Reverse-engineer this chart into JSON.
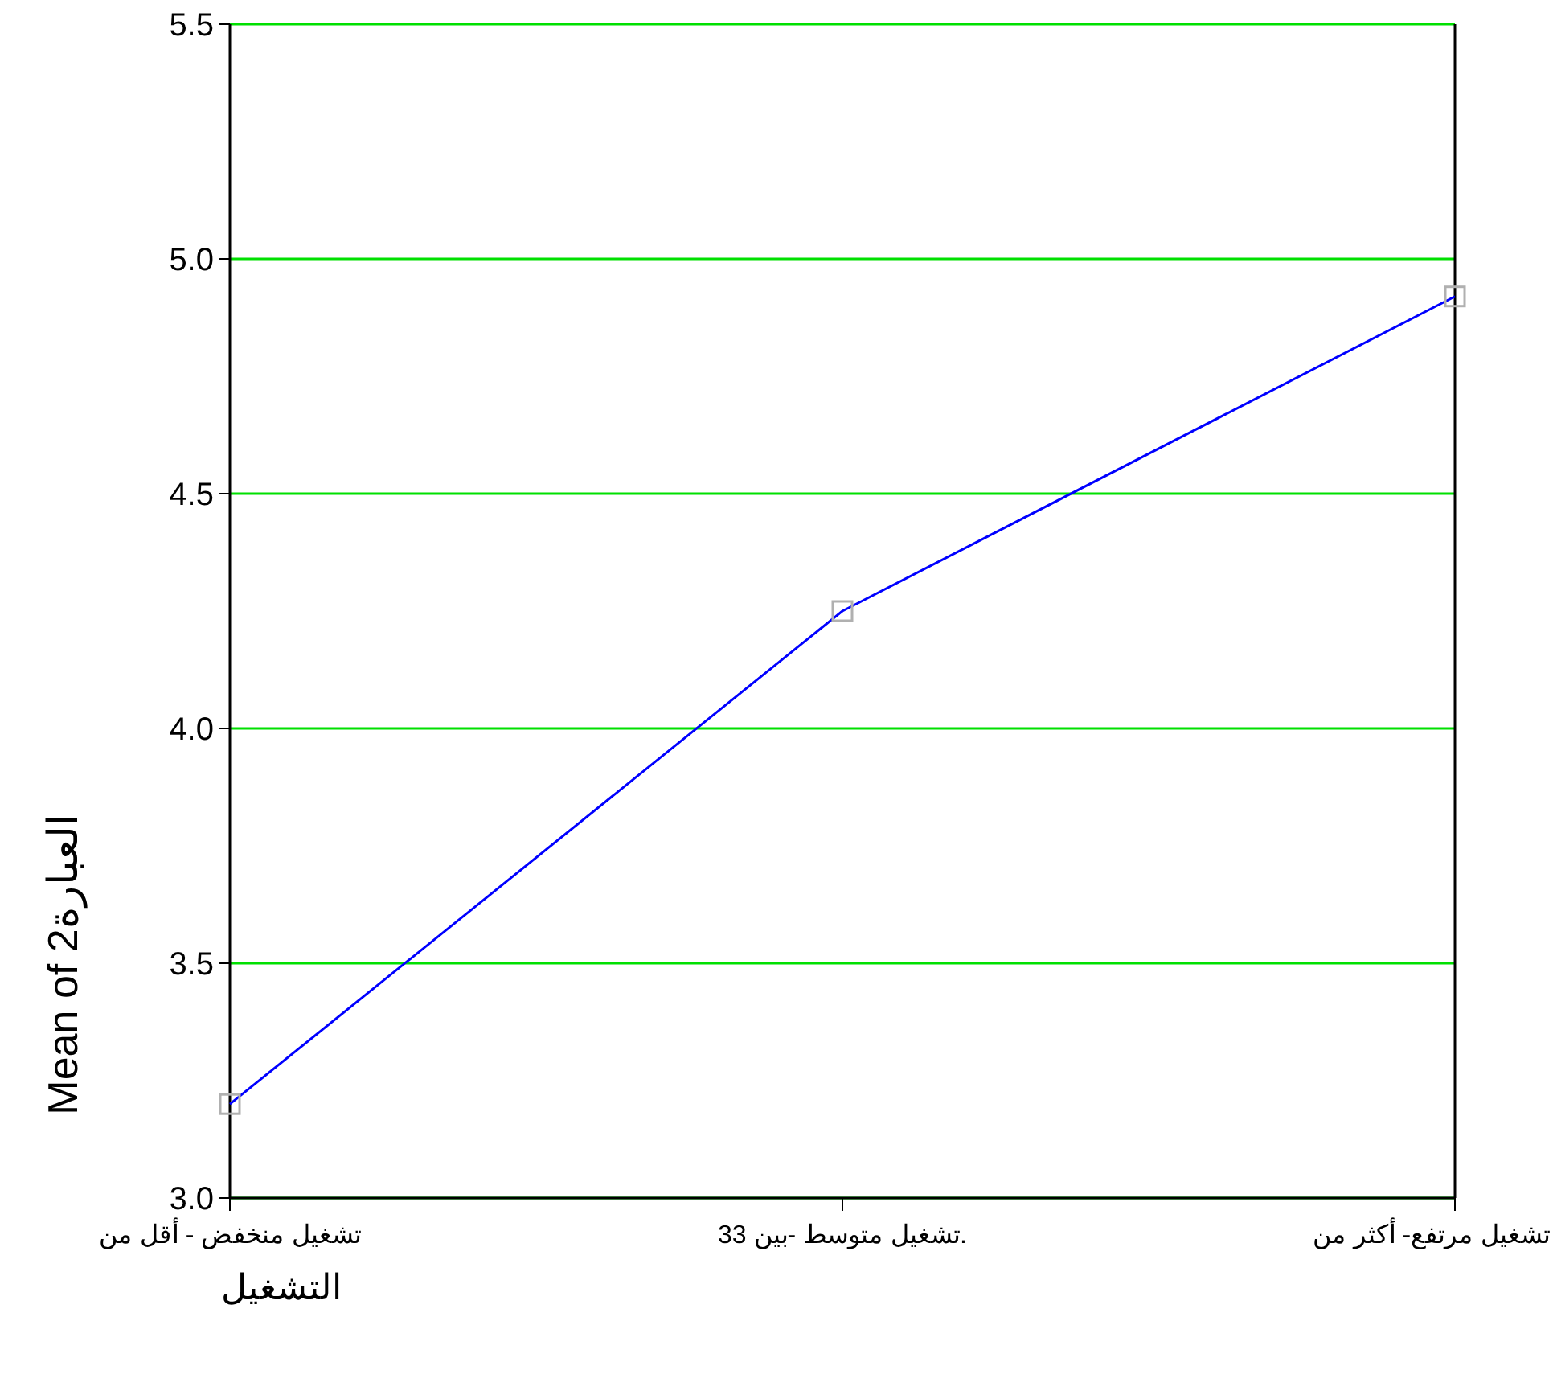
{
  "chart_data": {
    "type": "line",
    "xlabel": "التشغيل",
    "ylabel": "Mean of العبارة2",
    "categories": [
      "تشغيل منخفض - أقل من",
      "تشغيل متوسط -بين 33.",
      "تشغيل مرتفع- أكثر من"
    ],
    "series": [
      {
        "color": "#0000ff",
        "values": [
          3.2,
          4.25,
          4.92
        ]
      }
    ],
    "marker": "square",
    "ylim": [
      3.0,
      5.5
    ],
    "yticks": [
      {
        "value": 3.0,
        "label": "3.0"
      },
      {
        "value": 3.5,
        "label": "3.5"
      },
      {
        "value": 4.0,
        "label": "4.0"
      },
      {
        "value": 4.5,
        "label": "4.5"
      },
      {
        "value": 5.0,
        "label": "5.0"
      },
      {
        "value": 5.5,
        "label": "5.5"
      }
    ],
    "grid": "y"
  }
}
